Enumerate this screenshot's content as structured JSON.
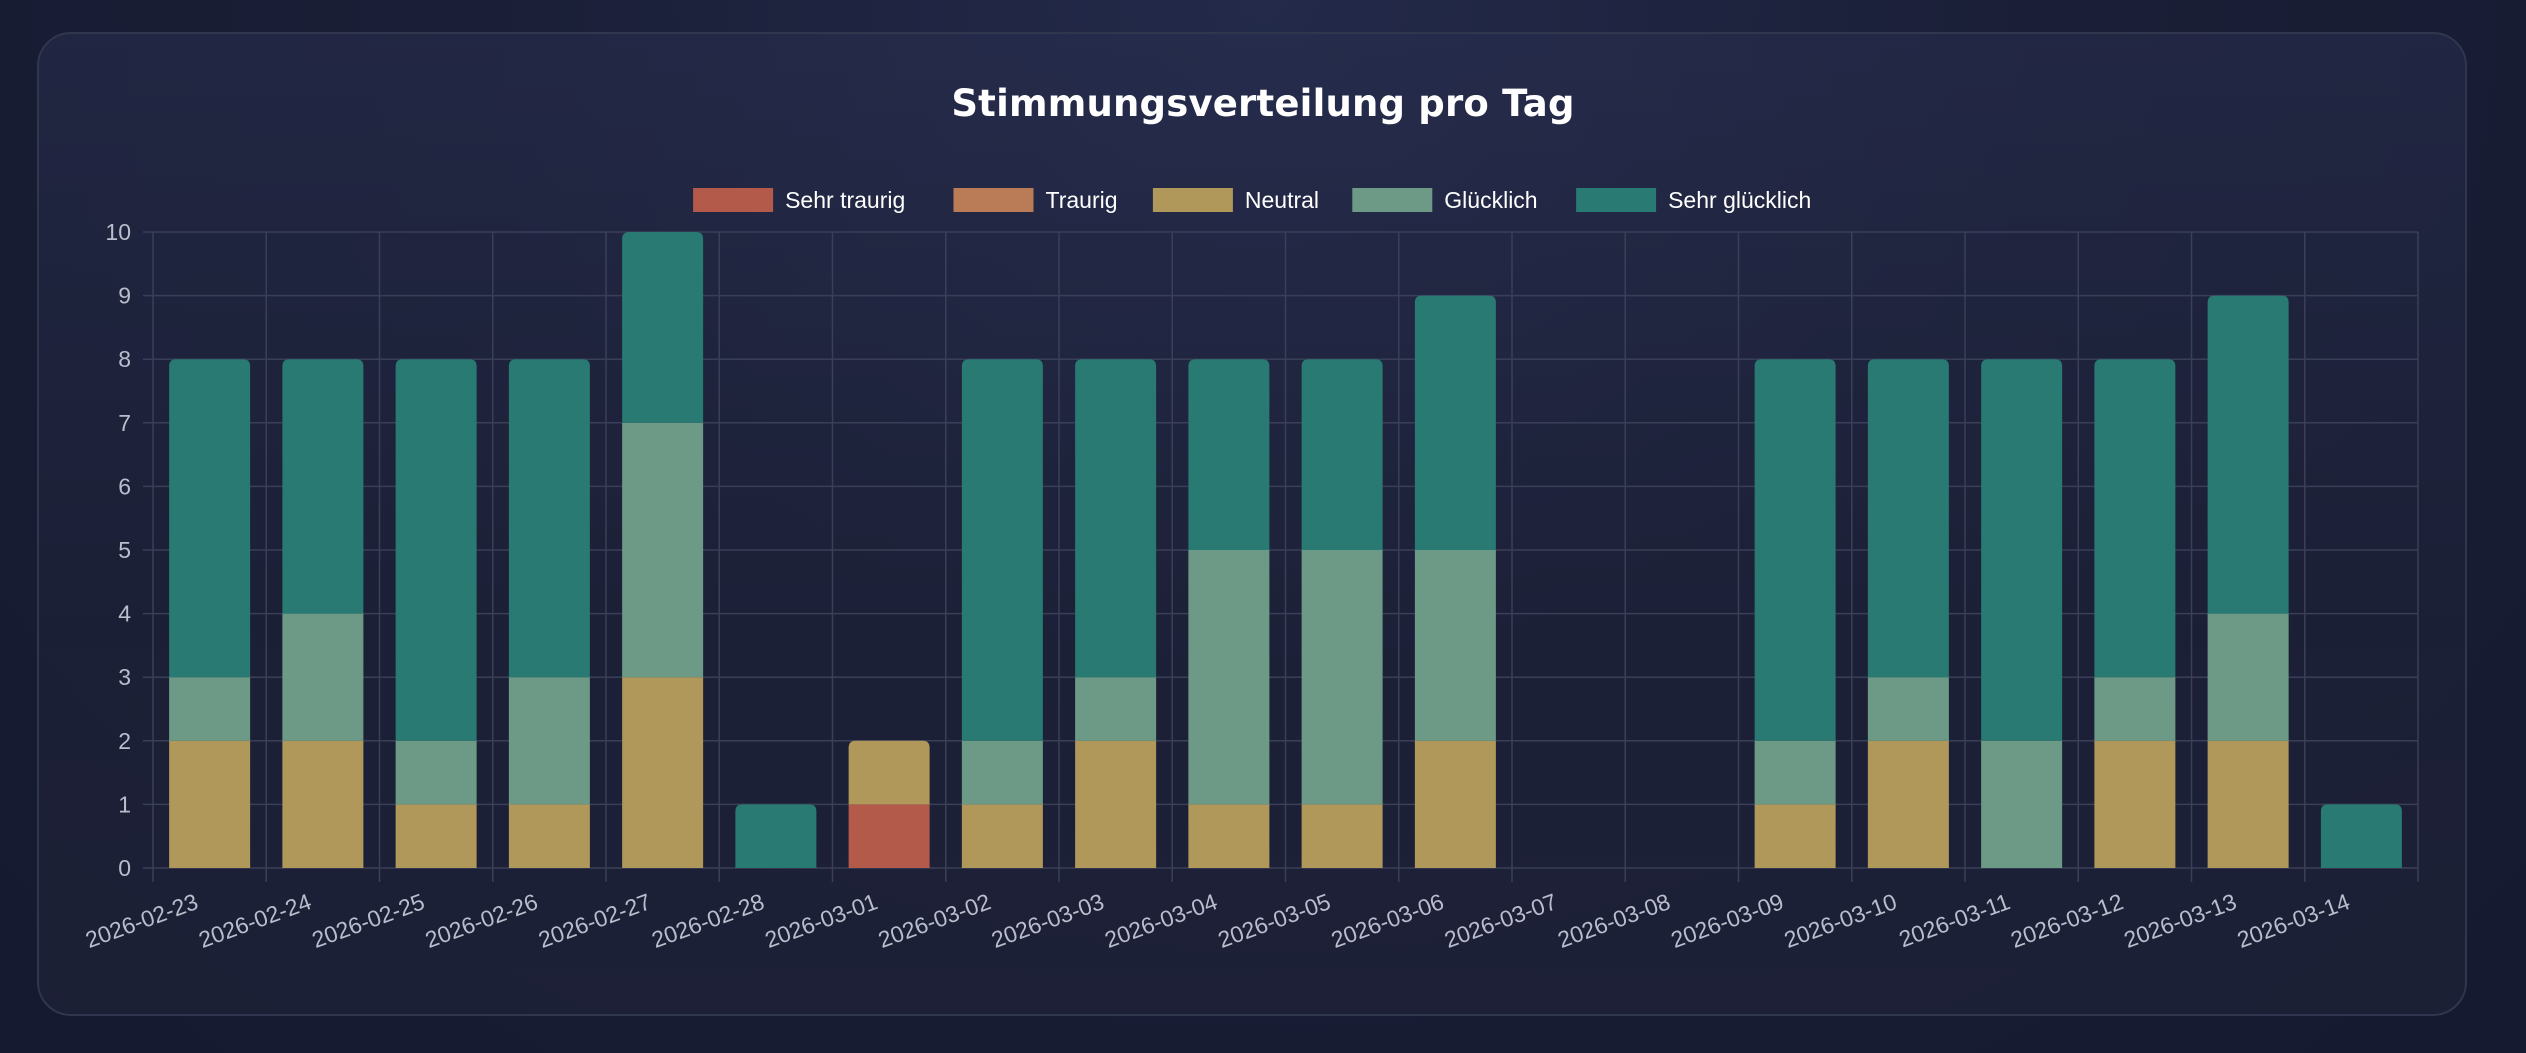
{
  "chart_data": {
    "type": "bar",
    "stacked": true,
    "title": "Stimmungsverteilung pro Tag",
    "categories": [
      "2026-02-23",
      "2026-02-24",
      "2026-02-25",
      "2026-02-26",
      "2026-02-27",
      "2026-02-28",
      "2026-03-01",
      "2026-03-02",
      "2026-03-03",
      "2026-03-04",
      "2026-03-05",
      "2026-03-06",
      "2026-03-07",
      "2026-03-08",
      "2026-03-09",
      "2026-03-10",
      "2026-03-11",
      "2026-03-12",
      "2026-03-13",
      "2026-03-14"
    ],
    "series": [
      {
        "name": "Sehr traurig",
        "color": "#b35a4a",
        "values": [
          0,
          0,
          0,
          0,
          0,
          0,
          1,
          0,
          0,
          0,
          0,
          0,
          0,
          0,
          0,
          0,
          0,
          0,
          0,
          0
        ]
      },
      {
        "name": "Traurig",
        "color": "#b97c56",
        "values": [
          0,
          0,
          0,
          0,
          0,
          0,
          0,
          0,
          0,
          0,
          0,
          0,
          0,
          0,
          0,
          0,
          0,
          0,
          0,
          0
        ]
      },
      {
        "name": "Neutral",
        "color": "#b0975a",
        "values": [
          2,
          2,
          1,
          1,
          3,
          0,
          1,
          1,
          2,
          1,
          1,
          2,
          0,
          0,
          1,
          2,
          0,
          2,
          2,
          0
        ]
      },
      {
        "name": "Glücklich",
        "color": "#6c9a86",
        "values": [
          1,
          2,
          1,
          2,
          4,
          0,
          0,
          1,
          1,
          4,
          4,
          3,
          0,
          0,
          1,
          1,
          2,
          1,
          2,
          0
        ]
      },
      {
        "name": "Sehr glücklich",
        "color": "#287a72",
        "values": [
          5,
          4,
          6,
          5,
          3,
          1,
          0,
          6,
          5,
          3,
          3,
          4,
          0,
          0,
          6,
          5,
          6,
          5,
          5,
          1
        ]
      }
    ],
    "ylim": [
      0,
      10
    ],
    "yticks": [
      0,
      1,
      2,
      3,
      4,
      5,
      6,
      7,
      8,
      9,
      10
    ],
    "legend": "top",
    "grid": true
  }
}
